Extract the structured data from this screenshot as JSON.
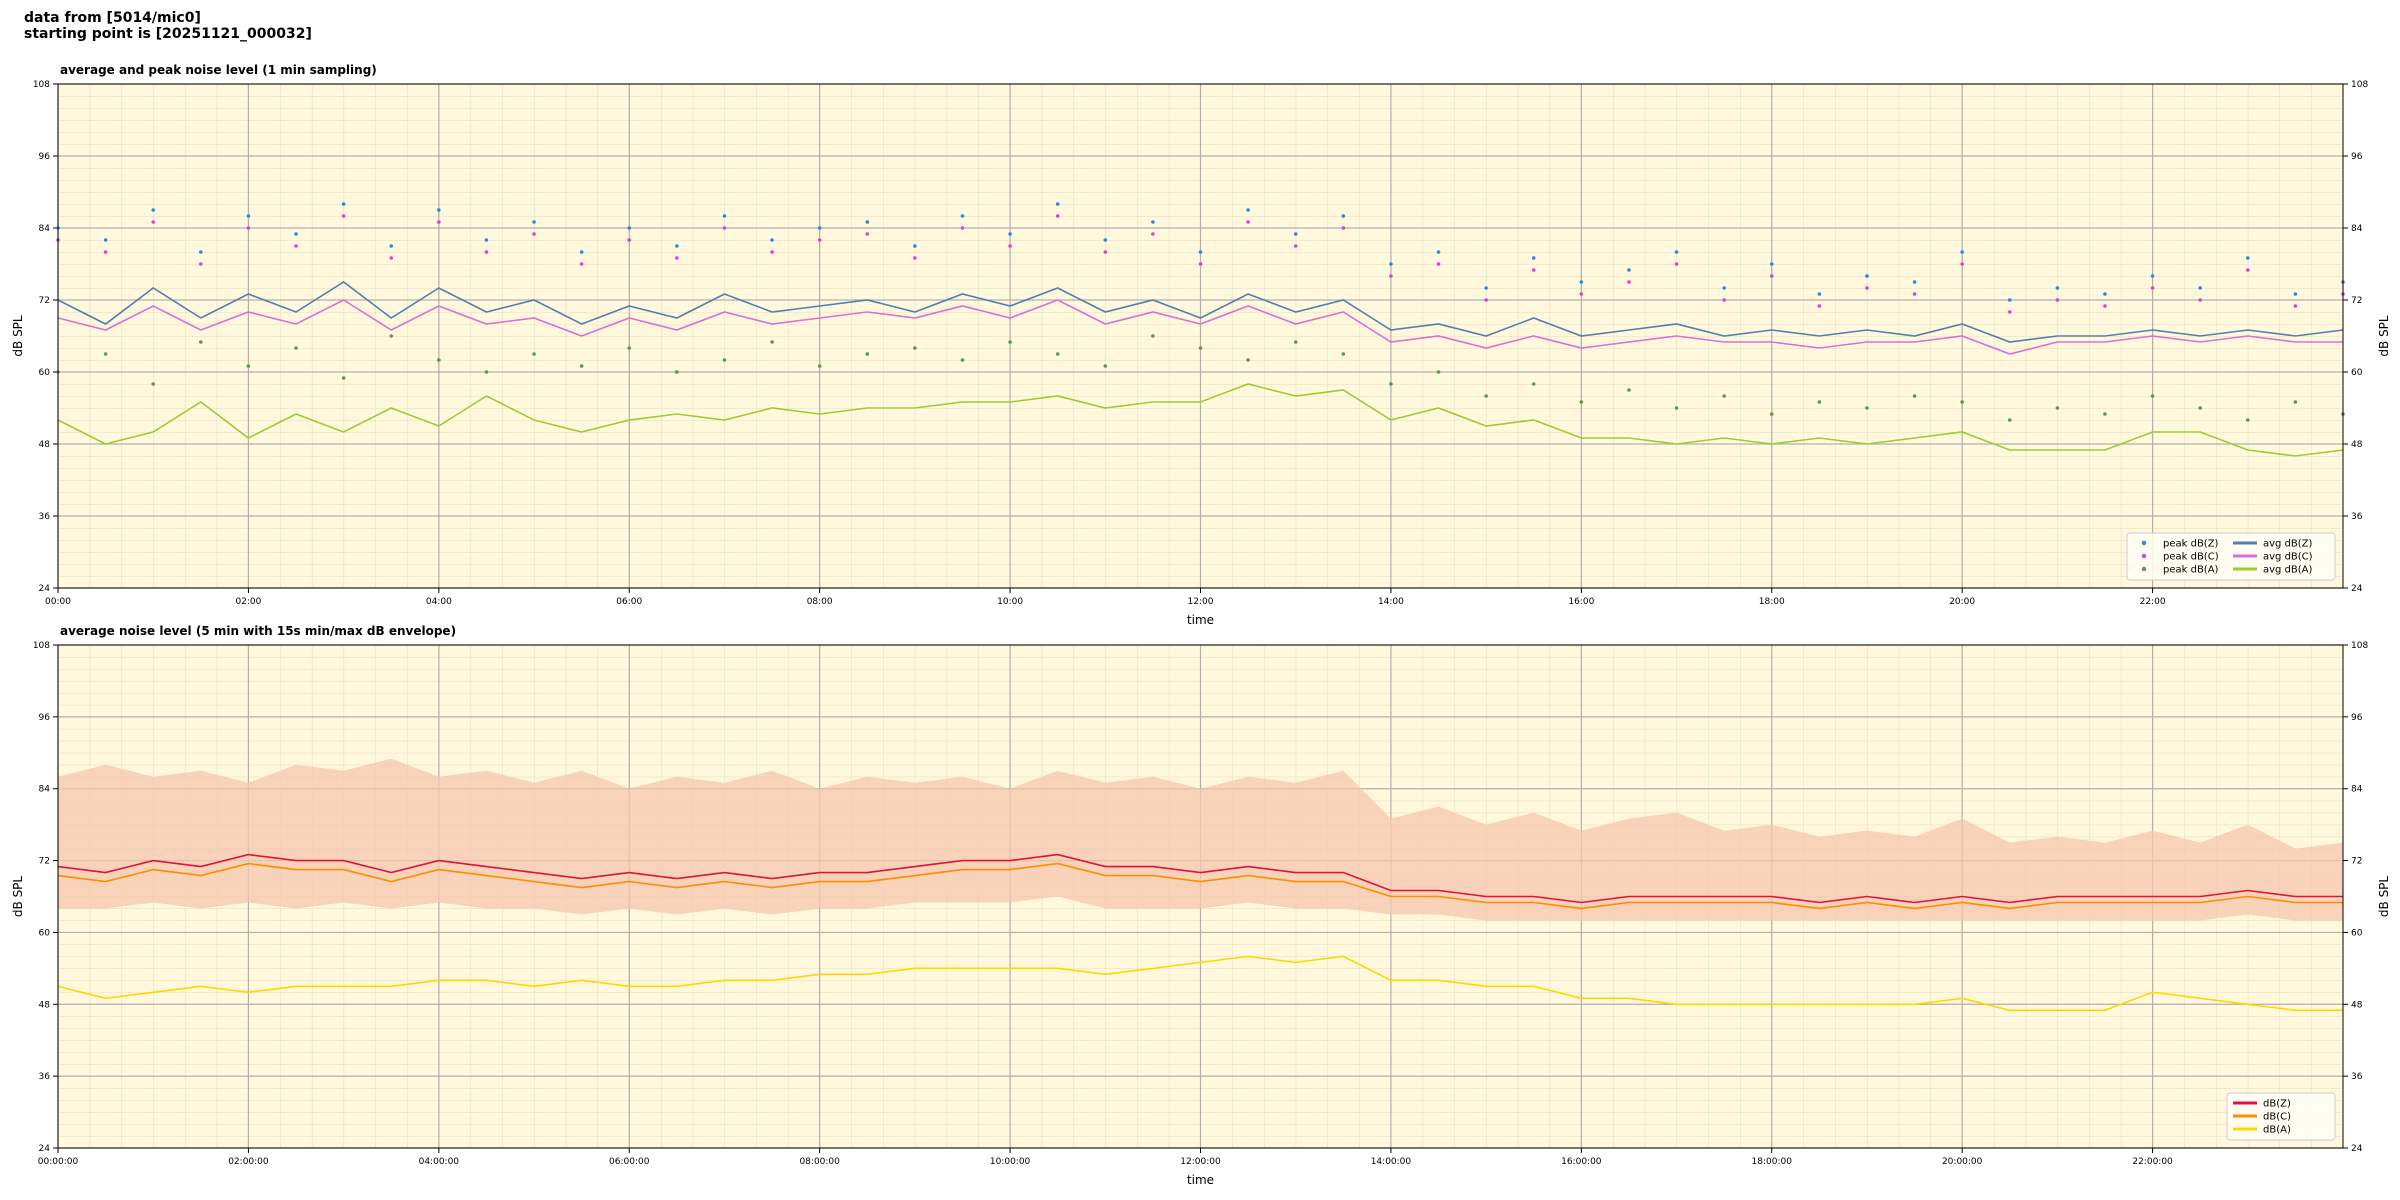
{
  "header": {
    "lines": [
      "data from [5014/mic0]",
      "starting point is [20251121_000032]"
    ]
  },
  "chart_data": [
    {
      "type": "line",
      "title": "average and peak noise level (1 min sampling)",
      "x_label": "time",
      "y_label": "dB SPL",
      "xlim": [
        0,
        24
      ],
      "ylim": [
        24,
        108
      ],
      "xticks": [
        {
          "value": 0,
          "label": "00:00"
        },
        {
          "value": 2,
          "label": "02:00"
        },
        {
          "value": 4,
          "label": "04:00"
        },
        {
          "value": 6,
          "label": "06:00"
        },
        {
          "value": 8,
          "label": "08:00"
        },
        {
          "value": 10,
          "label": "10:00"
        },
        {
          "value": 12,
          "label": "12:00"
        },
        {
          "value": 14,
          "label": "14:00"
        },
        {
          "value": 16,
          "label": "16:00"
        },
        {
          "value": 18,
          "label": "18:00"
        },
        {
          "value": 20,
          "label": "20:00"
        },
        {
          "value": 22,
          "label": "22:00"
        }
      ],
      "yticks": [
        24,
        36,
        48,
        60,
        72,
        84,
        96,
        108
      ],
      "grid": true,
      "legend": "lower right",
      "legend_columns": 2,
      "x": [
        0,
        0.5,
        1,
        1.5,
        2,
        2.5,
        3,
        3.5,
        4,
        4.5,
        5,
        5.5,
        6,
        6.5,
        7,
        7.5,
        8,
        8.5,
        9,
        9.5,
        10,
        10.5,
        11,
        11.5,
        12,
        12.5,
        13,
        13.5,
        14,
        14.5,
        15,
        15.5,
        16,
        16.5,
        17,
        17.5,
        18,
        18.5,
        19,
        19.5,
        20,
        20.5,
        21,
        21.5,
        22,
        22.5,
        23,
        23.5,
        24
      ],
      "series": [
        {
          "name": "peak dB(Z)",
          "style": "markers",
          "color": "#1f8fe0",
          "values": [
            84,
            82,
            87,
            80,
            86,
            83,
            88,
            81,
            87,
            82,
            85,
            80,
            84,
            81,
            86,
            82,
            84,
            85,
            81,
            86,
            83,
            88,
            82,
            85,
            80,
            87,
            83,
            86,
            78,
            80,
            74,
            79,
            75,
            77,
            80,
            74,
            78,
            73,
            76,
            75,
            80,
            72,
            74,
            73,
            76,
            74,
            79,
            73,
            75
          ]
        },
        {
          "name": "peak dB(C)",
          "style": "markers",
          "color": "#e040d0",
          "values": [
            82,
            80,
            85,
            78,
            84,
            81,
            86,
            79,
            85,
            80,
            83,
            78,
            82,
            79,
            84,
            80,
            82,
            83,
            79,
            84,
            81,
            86,
            80,
            83,
            78,
            85,
            81,
            84,
            76,
            78,
            72,
            77,
            73,
            75,
            78,
            72,
            76,
            71,
            74,
            73,
            78,
            70,
            72,
            71,
            74,
            72,
            77,
            71,
            73
          ]
        },
        {
          "name": "peak dB(A)",
          "style": "markers",
          "color": "#5a9a50",
          "values": [
            60,
            63,
            58,
            65,
            61,
            64,
            59,
            66,
            62,
            60,
            63,
            61,
            64,
            60,
            62,
            65,
            61,
            63,
            64,
            62,
            65,
            63,
            61,
            66,
            64,
            62,
            65,
            63,
            58,
            60,
            56,
            58,
            55,
            57,
            54,
            56,
            53,
            55,
            54,
            56,
            55,
            52,
            54,
            53,
            56,
            54,
            52,
            55,
            53
          ]
        },
        {
          "name": "avg dB(Z)",
          "style": "line",
          "color": "#4f81b0",
          "values": [
            72,
            68,
            74,
            69,
            73,
            70,
            75,
            69,
            74,
            70,
            72,
            68,
            71,
            69,
            73,
            70,
            71,
            72,
            70,
            73,
            71,
            74,
            70,
            72,
            69,
            73,
            70,
            72,
            67,
            68,
            66,
            69,
            66,
            67,
            68,
            66,
            67,
            66,
            67,
            66,
            68,
            65,
            66,
            66,
            67,
            66,
            67,
            66,
            67
          ]
        },
        {
          "name": "avg dB(C)",
          "style": "line",
          "color": "#da70d6",
          "values": [
            69,
            67,
            71,
            67,
            70,
            68,
            72,
            67,
            71,
            68,
            69,
            66,
            69,
            67,
            70,
            68,
            69,
            70,
            69,
            71,
            69,
            72,
            68,
            70,
            68,
            71,
            68,
            70,
            65,
            66,
            64,
            66,
            64,
            65,
            66,
            65,
            65,
            64,
            65,
            65,
            66,
            63,
            65,
            65,
            66,
            65,
            66,
            65,
            65
          ]
        },
        {
          "name": "avg dB(A)",
          "style": "line",
          "color": "#9acd32",
          "values": [
            52,
            48,
            50,
            55,
            49,
            53,
            50,
            54,
            51,
            56,
            52,
            50,
            52,
            53,
            52,
            54,
            53,
            54,
            54,
            55,
            55,
            56,
            54,
            55,
            55,
            58,
            56,
            57,
            52,
            54,
            51,
            52,
            49,
            49,
            48,
            49,
            48,
            49,
            48,
            49,
            50,
            47,
            47,
            47,
            50,
            50,
            47,
            46,
            47
          ]
        }
      ]
    },
    {
      "type": "line",
      "title": "average noise level (5 min with 15s min/max dB envelope)",
      "x_label": "time",
      "y_label": "dB SPL",
      "xlim": [
        0,
        24
      ],
      "ylim": [
        24,
        108
      ],
      "xticks": [
        {
          "value": 0,
          "label": "00:00:00"
        },
        {
          "value": 2,
          "label": "02:00:00"
        },
        {
          "value": 4,
          "label": "04:00:00"
        },
        {
          "value": 6,
          "label": "06:00:00"
        },
        {
          "value": 8,
          "label": "08:00:00"
        },
        {
          "value": 10,
          "label": "10:00:00"
        },
        {
          "value": 12,
          "label": "12:00:00"
        },
        {
          "value": 14,
          "label": "14:00:00"
        },
        {
          "value": 16,
          "label": "16:00:00"
        },
        {
          "value": 18,
          "label": "18:00:00"
        },
        {
          "value": 20,
          "label": "20:00:00"
        },
        {
          "value": 22,
          "label": "22:00:00"
        }
      ],
      "yticks": [
        24,
        36,
        48,
        60,
        72,
        84,
        96,
        108
      ],
      "grid": true,
      "legend": "lower right",
      "legend_columns": 1,
      "x": [
        0,
        0.5,
        1,
        1.5,
        2,
        2.5,
        3,
        3.5,
        4,
        4.5,
        5,
        5.5,
        6,
        6.5,
        7,
        7.5,
        8,
        8.5,
        9,
        9.5,
        10,
        10.5,
        11,
        11.5,
        12,
        12.5,
        13,
        13.5,
        14,
        14.5,
        15,
        15.5,
        16,
        16.5,
        17,
        17.5,
        18,
        18.5,
        19,
        19.5,
        20,
        20.5,
        21,
        21.5,
        22,
        22.5,
        23,
        23.5,
        24
      ],
      "envelope": {
        "color": "#f6c6ae",
        "low": [
          64,
          64,
          65,
          64,
          65,
          64,
          65,
          64,
          65,
          64,
          64,
          63,
          64,
          63,
          64,
          63,
          64,
          64,
          65,
          65,
          65,
          66,
          64,
          64,
          64,
          65,
          64,
          64,
          63,
          63,
          62,
          62,
          62,
          62,
          62,
          62,
          62,
          62,
          62,
          62,
          62,
          62,
          62,
          62,
          62,
          62,
          63,
          62,
          62
        ],
        "high": [
          86,
          88,
          86,
          87,
          85,
          88,
          87,
          89,
          86,
          87,
          85,
          87,
          84,
          86,
          85,
          87,
          84,
          86,
          85,
          86,
          84,
          87,
          85,
          86,
          84,
          86,
          85,
          87,
          79,
          81,
          78,
          80,
          77,
          79,
          80,
          77,
          78,
          76,
          77,
          76,
          79,
          75,
          76,
          75,
          77,
          75,
          78,
          74,
          75
        ]
      },
      "series": [
        {
          "name": "dB(Z)",
          "style": "line",
          "color": "#dc143c",
          "values": [
            71,
            70,
            72,
            71,
            73,
            72,
            72,
            70,
            72,
            71,
            70,
            69,
            70,
            69,
            70,
            69,
            70,
            70,
            71,
            72,
            72,
            73,
            71,
            71,
            70,
            71,
            70,
            70,
            67,
            67,
            66,
            66,
            65,
            66,
            66,
            66,
            66,
            65,
            66,
            65,
            66,
            65,
            66,
            66,
            66,
            66,
            67,
            66,
            66
          ]
        },
        {
          "name": "dB(C)",
          "style": "line",
          "color": "#ff8c00",
          "values": [
            69.5,
            68.5,
            70.5,
            69.5,
            71.5,
            70.5,
            70.5,
            68.5,
            70.5,
            69.5,
            68.5,
            67.5,
            68.5,
            67.5,
            68.5,
            67.5,
            68.5,
            68.5,
            69.5,
            70.5,
            70.5,
            71.5,
            69.5,
            69.5,
            68.5,
            69.5,
            68.5,
            68.5,
            66,
            66,
            65,
            65,
            64,
            65,
            65,
            65,
            65,
            64,
            65,
            64,
            65,
            64,
            65,
            65,
            65,
            65,
            66,
            65,
            65
          ]
        },
        {
          "name": "dB(A)",
          "style": "line",
          "color": "#ffd700",
          "values": [
            51,
            49,
            50,
            51,
            50,
            51,
            51,
            51,
            52,
            52,
            51,
            52,
            51,
            51,
            52,
            52,
            53,
            53,
            54,
            54,
            54,
            54,
            53,
            54,
            55,
            56,
            55,
            56,
            52,
            52,
            51,
            51,
            49,
            49,
            48,
            48,
            48,
            48,
            48,
            48,
            49,
            47,
            47,
            47,
            50,
            49,
            48,
            47,
            47
          ]
        }
      ]
    }
  ]
}
